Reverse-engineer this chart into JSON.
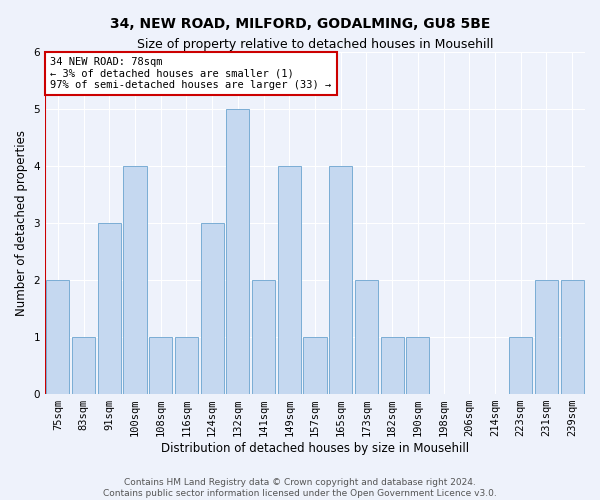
{
  "title": "34, NEW ROAD, MILFORD, GODALMING, GU8 5BE",
  "subtitle": "Size of property relative to detached houses in Mousehill",
  "xlabel": "Distribution of detached houses by size in Mousehill",
  "ylabel": "Number of detached properties",
  "categories": [
    "75sqm",
    "83sqm",
    "91sqm",
    "100sqm",
    "108sqm",
    "116sqm",
    "124sqm",
    "132sqm",
    "141sqm",
    "149sqm",
    "157sqm",
    "165sqm",
    "173sqm",
    "182sqm",
    "190sqm",
    "198sqm",
    "206sqm",
    "214sqm",
    "223sqm",
    "231sqm",
    "239sqm"
  ],
  "values": [
    2,
    1,
    3,
    4,
    1,
    1,
    3,
    5,
    2,
    4,
    1,
    4,
    2,
    1,
    1,
    0,
    0,
    0,
    1,
    2,
    2
  ],
  "bar_color": "#c5d8f0",
  "bar_edge_color": "#7aadd4",
  "annotation_box_text": "34 NEW ROAD: 78sqm\n← 3% of detached houses are smaller (1)\n97% of semi-detached houses are larger (33) →",
  "annotation_box_color": "#ffffff",
  "annotation_box_edge_color": "#cc0000",
  "marker_line_color": "#cc0000",
  "ylim": [
    0,
    6
  ],
  "yticks": [
    0,
    1,
    2,
    3,
    4,
    5,
    6
  ],
  "footer_line1": "Contains HM Land Registry data © Crown copyright and database right 2024.",
  "footer_line2": "Contains public sector information licensed under the Open Government Licence v3.0.",
  "title_fontsize": 10,
  "subtitle_fontsize": 9,
  "xlabel_fontsize": 8.5,
  "ylabel_fontsize": 8.5,
  "tick_fontsize": 7.5,
  "footer_fontsize": 6.5,
  "annotation_fontsize": 7.5,
  "background_color": "#eef2fb",
  "grid_color": "#ffffff"
}
